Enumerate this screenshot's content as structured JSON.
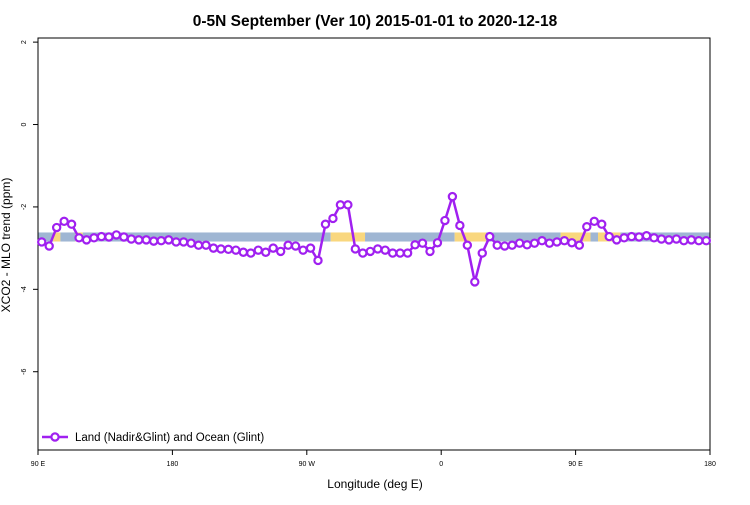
{
  "chart_data": {
    "type": "line",
    "title": "0-5N September (Ver 10)   2015-01-01 to 2020-12-18",
    "xlabel": "Longitude (deg E)",
    "ylabel": "XCO2 - MLO trend (ppm)",
    "x_ticks": [
      {
        "value": 90,
        "label": "90 E"
      },
      {
        "value": 180,
        "label": "180"
      },
      {
        "value": 270,
        "label": "90 W"
      },
      {
        "value": 360,
        "label": "0"
      },
      {
        "value": 450,
        "label": "90 E"
      },
      {
        "value": 540,
        "label": "180"
      }
    ],
    "y_ticks": [
      {
        "value": 2,
        "label": "2"
      },
      {
        "value": 0,
        "label": "0"
      },
      {
        "value": -2,
        "label": "-2"
      },
      {
        "value": -4,
        "label": "-4"
      },
      {
        "value": -6,
        "label": "-6"
      }
    ],
    "xlim": [
      90,
      540
    ],
    "ylim": [
      -7.9,
      2.1
    ],
    "grid": false,
    "legend": {
      "position": "bottom-left",
      "entries": [
        "Land (Nadir&Glint) and Ocean (Glint)"
      ]
    },
    "colors": {
      "series": "#a020f0",
      "ocean_band": "#9fb6d3",
      "land_band": "#f9d77e"
    },
    "surface_band": {
      "y_top": -2.62,
      "y_bottom": -2.84,
      "segments": [
        {
          "type": "ocean",
          "x_start": 90,
          "x_end": 100
        },
        {
          "type": "land",
          "x_start": 100,
          "x_end": 105
        },
        {
          "type": "ocean",
          "x_start": 105,
          "x_end": 115
        },
        {
          "type": "land",
          "x_start": 115,
          "x_end": 120
        },
        {
          "type": "ocean",
          "x_start": 120,
          "x_end": 286
        },
        {
          "type": "land",
          "x_start": 286,
          "x_end": 309
        },
        {
          "type": "ocean",
          "x_start": 309,
          "x_end": 369
        },
        {
          "type": "land",
          "x_start": 369,
          "x_end": 390
        },
        {
          "type": "ocean",
          "x_start": 390,
          "x_end": 440
        },
        {
          "type": "land",
          "x_start": 440,
          "x_end": 460
        },
        {
          "type": "ocean",
          "x_start": 460,
          "x_end": 465
        },
        {
          "type": "land",
          "x_start": 465,
          "x_end": 480
        },
        {
          "type": "ocean",
          "x_start": 480,
          "x_end": 540
        }
      ]
    },
    "series": [
      {
        "name": "Land (Nadir&Glint) and Ocean (Glint)",
        "x": [
          92.5,
          97.5,
          102.5,
          107.5,
          112.5,
          117.5,
          122.5,
          127.5,
          132.5,
          137.5,
          142.5,
          147.5,
          152.5,
          157.5,
          162.5,
          167.5,
          172.5,
          177.5,
          182.5,
          187.5,
          192.5,
          197.5,
          202.5,
          207.5,
          212.5,
          217.5,
          222.5,
          227.5,
          232.5,
          237.5,
          242.5,
          247.5,
          252.5,
          257.5,
          262.5,
          267.5,
          272.5,
          277.5,
          282.5,
          287.5,
          292.5,
          297.5,
          302.5,
          307.5,
          312.5,
          317.5,
          322.5,
          327.5,
          332.5,
          337.5,
          342.5,
          347.5,
          352.5,
          357.5,
          362.5,
          367.5,
          372.5,
          377.5,
          382.5,
          387.5,
          392.5,
          397.5,
          402.5,
          407.5,
          412.5,
          417.5,
          422.5,
          427.5,
          432.5,
          437.5,
          442.5,
          447.5,
          452.5,
          457.5,
          462.5,
          467.5,
          472.5,
          477.5,
          482.5,
          487.5,
          492.5,
          497.5,
          502.5,
          507.5,
          512.5,
          517.5,
          522.5,
          527.5,
          532.5,
          537.5
        ],
        "y": [
          -2.85,
          -2.95,
          -2.5,
          -2.35,
          -2.42,
          -2.75,
          -2.8,
          -2.75,
          -2.72,
          -2.73,
          -2.68,
          -2.73,
          -2.78,
          -2.8,
          -2.8,
          -2.83,
          -2.82,
          -2.8,
          -2.85,
          -2.85,
          -2.88,
          -2.93,
          -2.93,
          -3.0,
          -3.02,
          -3.03,
          -3.05,
          -3.1,
          -3.12,
          -3.05,
          -3.1,
          -3.0,
          -3.08,
          -2.93,
          -2.95,
          -3.05,
          -3.0,
          -3.3,
          -2.42,
          -2.28,
          -1.95,
          -1.95,
          -3.02,
          -3.12,
          -3.08,
          -3.02,
          -3.05,
          -3.12,
          -3.12,
          -3.12,
          -2.92,
          -2.88,
          -3.08,
          -2.87,
          -2.33,
          -1.75,
          -2.45,
          -2.93,
          -3.82,
          -3.12,
          -2.72,
          -2.93,
          -2.95,
          -2.93,
          -2.88,
          -2.92,
          -2.88,
          -2.82,
          -2.88,
          -2.85,
          -2.82,
          -2.87,
          -2.93,
          -2.48,
          -2.35,
          -2.42,
          -2.72,
          -2.8,
          -2.75,
          -2.72,
          -2.73,
          -2.7,
          -2.75,
          -2.78,
          -2.8,
          -2.78,
          -2.82,
          -2.8,
          -2.82,
          -2.82
        ]
      }
    ]
  }
}
